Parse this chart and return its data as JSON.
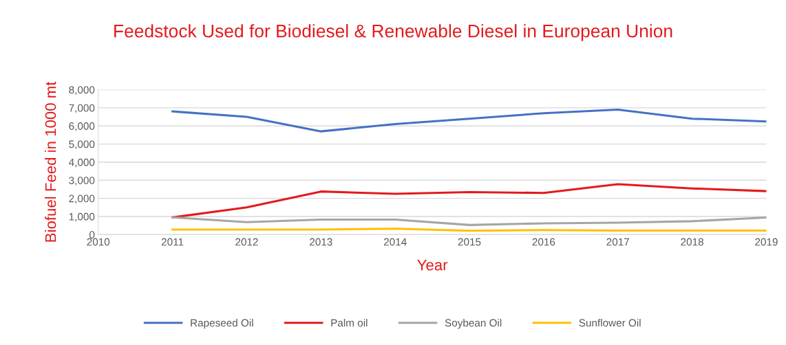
{
  "chart_data": {
    "type": "line",
    "title": "Feedstock Used for Biodiesel & Renewable Diesel in European Union",
    "xlabel": "Year",
    "ylabel": "Biofuel Feed in 1000 mt",
    "x": [
      2011,
      2012,
      2013,
      2014,
      2015,
      2016,
      2017,
      2018,
      2019
    ],
    "series": [
      {
        "name": "Rapeseed Oil",
        "color": "#4472c4",
        "values": [
          6800,
          6500,
          5700,
          6100,
          6400,
          6700,
          6900,
          6400,
          6250
        ]
      },
      {
        "name": "Palm oil",
        "color": "#e31a1c",
        "values": [
          950,
          1500,
          2380,
          2250,
          2350,
          2300,
          2780,
          2550,
          2400
        ]
      },
      {
        "name": "Soybean Oil",
        "color": "#a5a5a5",
        "values": [
          950,
          690,
          830,
          830,
          530,
          620,
          660,
          740,
          940
        ]
      },
      {
        "name": "Sunflower Oil",
        "color": "#ffc000",
        "values": [
          280,
          280,
          280,
          330,
          210,
          250,
          220,
          220,
          220
        ]
      }
    ],
    "xlim": [
      2010,
      2019
    ],
    "xticks": [
      2010,
      2011,
      2012,
      2013,
      2014,
      2015,
      2016,
      2017,
      2018,
      2019
    ],
    "ylim": [
      0,
      8000
    ],
    "yticks": [
      {
        "value": 0,
        "label": "0"
      },
      {
        "value": 1000,
        "label": "1,000"
      },
      {
        "value": 2000,
        "label": "2,000"
      },
      {
        "value": 3000,
        "label": "3,000"
      },
      {
        "value": 4000,
        "label": "4,000"
      },
      {
        "value": 5000,
        "label": "5,000"
      },
      {
        "value": 6000,
        "label": "6,000"
      },
      {
        "value": 7000,
        "label": "7,000"
      },
      {
        "value": 8000,
        "label": "8,000"
      }
    ],
    "grid": "y",
    "legend": "bottom",
    "marker": "none",
    "line_style": "solid"
  }
}
